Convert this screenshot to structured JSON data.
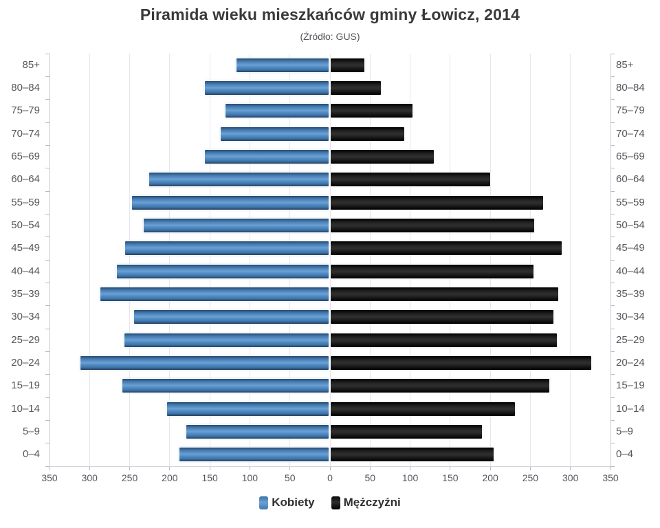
{
  "header": {
    "title": "Piramida wieku mieszkańców gminy Łowicz, 2014",
    "subtitle": "(Źródło: GUS)"
  },
  "legend": {
    "items": [
      {
        "label": "Kobiety",
        "color": "#5b93cc"
      },
      {
        "label": "Mężczyźni",
        "color": "#111111"
      }
    ],
    "position": "bottom"
  },
  "colors": {
    "female_bar": "#5b93cc",
    "male_bar": "#111111",
    "grid": "#e6e6ec",
    "axis": "#c9c9d1",
    "text": "#56565e",
    "title_text": "#3a3a3c",
    "background": "#ffffff"
  },
  "chart_data": {
    "type": "bar",
    "variant": "population-pyramid-horizontal",
    "title": "Piramida wieku mieszkańców gminy Łowicz, 2014",
    "subtitle": "(Źródło: GUS)",
    "categories": [
      "85+",
      "80–84",
      "75–79",
      "70–74",
      "65–69",
      "60–64",
      "55–59",
      "50–54",
      "45–49",
      "40–44",
      "35–39",
      "30–34",
      "25–29",
      "20–24",
      "15–19",
      "10–14",
      "5–9",
      "0–4"
    ],
    "series": [
      {
        "name": "Kobiety",
        "side": "left",
        "values": [
          115,
          154,
          129,
          135,
          154,
          224,
          245,
          231,
          254,
          264,
          285,
          243,
          255,
          310,
          257,
          202,
          178,
          186
        ]
      },
      {
        "name": "Mężczyźni",
        "side": "right",
        "values": [
          42,
          63,
          102,
          92,
          129,
          199,
          265,
          254,
          288,
          253,
          284,
          278,
          282,
          325,
          273,
          230,
          189,
          203
        ]
      }
    ],
    "x_tick_values": [
      -350,
      -300,
      -250,
      -200,
      -150,
      -100,
      -50,
      0,
      50,
      100,
      150,
      200,
      250,
      300,
      350
    ],
    "x_tick_labels": [
      "350",
      "300",
      "250",
      "200",
      "150",
      "100",
      "50",
      "0",
      "50",
      "100",
      "150",
      "200",
      "250",
      "300",
      "350"
    ],
    "xlim": [
      -350,
      350
    ],
    "xlabel": "",
    "ylabel": "",
    "grid": true,
    "legend_position": "bottom"
  }
}
